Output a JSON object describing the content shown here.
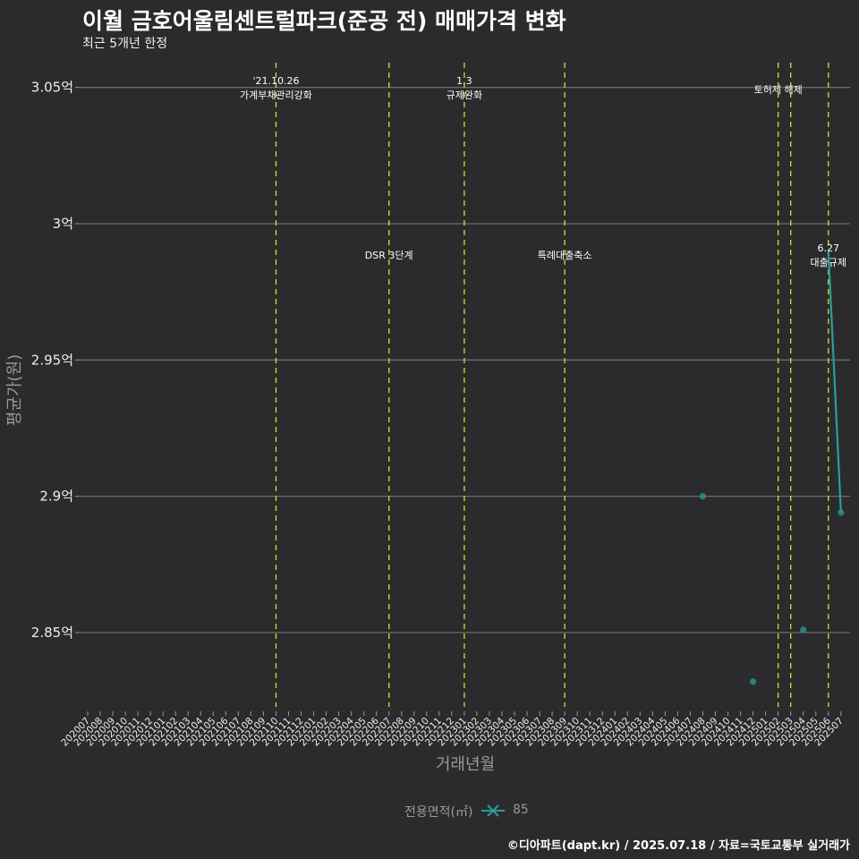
{
  "header": {
    "title": "이월 금호어울림센트럴파크(준공 전) 매매가격 변화",
    "subtitle": "최근 5개년 한정"
  },
  "legend": {
    "title": "전용면적(㎡)",
    "items": [
      {
        "label": "85",
        "color": "#2a9d9a"
      }
    ]
  },
  "caption": "©디아파트(dapt.kr) / 2025.07.18 / 자료=국토교통부 실거래가",
  "colors": {
    "background": "#2b2b2d",
    "gridline": "#6b6b6b",
    "event_line": "#d9e021",
    "series": "#2a9d9a"
  },
  "chart_data": {
    "type": "line",
    "title": "이월 금호어울림센트럴파크(준공 전) 매매가격 변화",
    "subtitle": "최근 5개년 한정",
    "xlabel": "거래년월",
    "ylabel": "평균가(원)",
    "ylim": [
      2.82,
      3.06
    ],
    "y_ticks": [
      {
        "value": 2.85,
        "label": "2.85억"
      },
      {
        "value": 2.9,
        "label": "2.9억"
      },
      {
        "value": 2.95,
        "label": "2.95억"
      },
      {
        "value": 3.0,
        "label": "3억"
      },
      {
        "value": 3.05,
        "label": "3.05억"
      }
    ],
    "categories": [
      "202007",
      "202008",
      "202009",
      "202010",
      "202011",
      "202012",
      "202101",
      "202102",
      "202103",
      "202104",
      "202105",
      "202106",
      "202107",
      "202108",
      "202109",
      "202110",
      "202111",
      "202112",
      "202201",
      "202202",
      "202203",
      "202204",
      "202205",
      "202206",
      "202207",
      "202208",
      "202209",
      "202210",
      "202211",
      "202212",
      "202301",
      "202302",
      "202303",
      "202304",
      "202305",
      "202306",
      "202307",
      "202308",
      "202309",
      "202310",
      "202311",
      "202312",
      "202401",
      "202402",
      "202403",
      "202404",
      "202405",
      "202406",
      "202407",
      "202408",
      "202409",
      "202410",
      "202411",
      "202412",
      "202501",
      "202502",
      "202503",
      "202504",
      "202505",
      "202506",
      "202507"
    ],
    "series": [
      {
        "name": "85",
        "unit": "억",
        "points": [
          {
            "x": "202408",
            "y": 2.9
          },
          {
            "x": "202412",
            "y": 2.832
          },
          {
            "x": "202504",
            "y": 2.851
          },
          {
            "x": "202506",
            "y": 2.99
          },
          {
            "x": "202507",
            "y": 2.894
          }
        ]
      }
    ],
    "events": [
      {
        "x": "202110",
        "label_line1": "'21.10.26",
        "label_line2": "가계부채관리강화",
        "label_y": "top"
      },
      {
        "x": "202207",
        "label_line1": "",
        "label_line2": "DSR 3단계",
        "label_y": "mid"
      },
      {
        "x": "202301",
        "label_line1": "1.3",
        "label_line2": "규제완화",
        "label_y": "top"
      },
      {
        "x": "202309",
        "label_line1": "",
        "label_line2": "특례대출축소",
        "label_y": "mid"
      },
      {
        "x": "202502",
        "label_line1": "",
        "label_line2": "토허제 해제",
        "label_y": "top"
      },
      {
        "x": "202503",
        "label_line1": "",
        "label_line2": "",
        "label_y": "top"
      },
      {
        "x": "202506",
        "label_line1": "6.27",
        "label_line2": "대출규제",
        "label_y": "mid"
      }
    ],
    "grid": true,
    "legend_position": "bottom"
  }
}
